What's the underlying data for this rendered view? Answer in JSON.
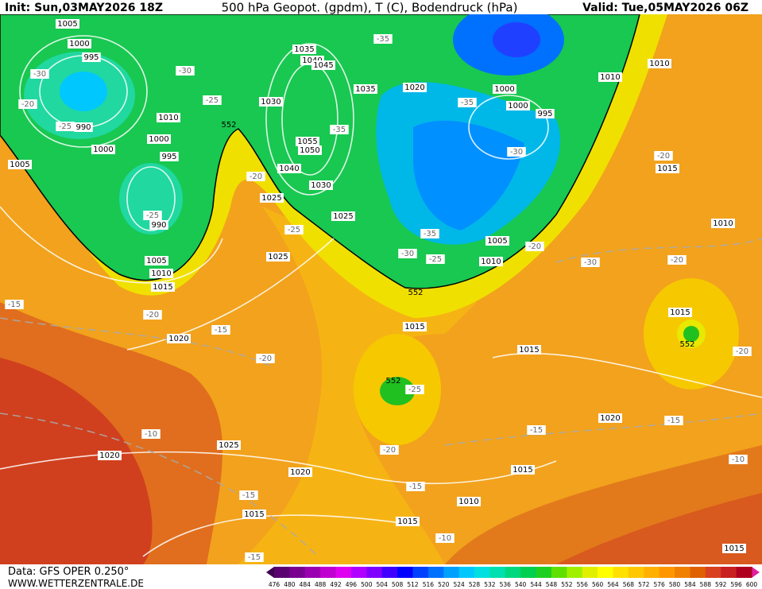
{
  "header": {
    "init": "Init: Sun,03MAY2026 18Z",
    "title": "500 hPa Geopot. (gpdm), T (C), Bodendruck (hPa)",
    "valid": "Valid: Tue,05MAY2026 06Z"
  },
  "footer": {
    "source": "Data: GFS OPER 0.250°",
    "website": "WWW.WETTERZENTRALE.DE"
  },
  "map": {
    "pressure_labels": [
      "1005",
      "1000",
      "995",
      "990",
      "1000",
      "1005",
      "1010",
      "1000",
      "995",
      "990",
      "1005",
      "1010",
      "1015",
      "1035",
      "1040",
      "1045",
      "1030",
      "1055",
      "1050",
      "1040",
      "1030",
      "1025",
      "1025",
      "1035",
      "1020",
      "1000",
      "1000",
      "995",
      "1010",
      "1010",
      "1015",
      "1010",
      "1005",
      "1010",
      "1025",
      "1015",
      "1015",
      "1015",
      "1020",
      "1020",
      "1025",
      "1020",
      "1020",
      "1015",
      "1010",
      "1015",
      "1015",
      "1015"
    ],
    "temperature_labels": [
      "-35",
      "-30",
      "-30",
      "-25",
      "-20",
      "-25",
      "-35",
      "-35",
      "-30",
      "-20",
      "-25",
      "-25",
      "-35",
      "-30",
      "-25",
      "-20",
      "-20",
      "-30",
      "-20",
      "-15",
      "-20",
      "-15",
      "-20",
      "-25",
      "-20",
      "-10",
      "-15",
      "-15",
      "-20",
      "-10",
      "-15",
      "-15",
      "-10",
      "-15"
    ],
    "height_labels": [
      "552",
      "552",
      "552",
      "552"
    ]
  },
  "legend": {
    "labels": [
      "476",
      "480",
      "484",
      "488",
      "492",
      "496",
      "500",
      "504",
      "508",
      "512",
      "516",
      "520",
      "524",
      "528",
      "532",
      "536",
      "540",
      "544",
      "548",
      "552",
      "556",
      "560",
      "564",
      "568",
      "572",
      "576",
      "580",
      "584",
      "588",
      "592",
      "596",
      "600"
    ],
    "colors": [
      "#5a0070",
      "#7a0090",
      "#9a00b0",
      "#c000d0",
      "#e000f0",
      "#b000ff",
      "#8000ff",
      "#4000ff",
      "#0000ff",
      "#0040ff",
      "#0070ff",
      "#00a0ff",
      "#00c8ff",
      "#00e0e0",
      "#00e0b0",
      "#00d880",
      "#00d050",
      "#20d020",
      "#60e000",
      "#a0f000",
      "#e0f000",
      "#ffff00",
      "#ffe000",
      "#ffc800",
      "#ffb000",
      "#ff9800",
      "#f08000",
      "#e06000",
      "#d84020",
      "#c82020",
      "#b00020"
    ]
  }
}
